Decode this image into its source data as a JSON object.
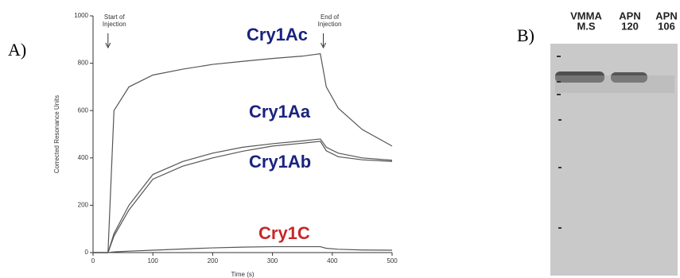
{
  "panels": {
    "a_label": "A)",
    "b_label": "B)"
  },
  "chart_data": {
    "type": "line",
    "xlabel": "Time (s)",
    "ylabel": "Corrected Resonance Units",
    "x": [
      0,
      25,
      35,
      60,
      100,
      150,
      200,
      250,
      300,
      350,
      380,
      390,
      410,
      450,
      500
    ],
    "series": [
      {
        "name": "Cry1Ac",
        "color": "#555555",
        "label_color": "#1a237e",
        "values": [
          0,
          0,
          600,
          700,
          750,
          775,
          795,
          808,
          820,
          830,
          840,
          700,
          610,
          520,
          450
        ]
      },
      {
        "name": "Cry1Aa",
        "color": "#555555",
        "label_color": "#1a237e",
        "values": [
          0,
          0,
          80,
          200,
          330,
          385,
          420,
          445,
          460,
          472,
          480,
          445,
          420,
          400,
          390
        ]
      },
      {
        "name": "Cry1Ab",
        "color": "#555555",
        "label_color": "#1a237e",
        "values": [
          0,
          0,
          70,
          180,
          310,
          365,
          400,
          428,
          450,
          462,
          470,
          430,
          405,
          392,
          385
        ]
      },
      {
        "name": "Cry1C",
        "color": "#555555",
        "label_color": "#c62828",
        "values": [
          0,
          0,
          3,
          6,
          10,
          15,
          20,
          23,
          25,
          25,
          25,
          18,
          14,
          11,
          10
        ]
      }
    ],
    "annotations": [
      {
        "lines": [
          "Start of",
          "Injection"
        ],
        "x": 25
      },
      {
        "lines": [
          "End of",
          "Injection"
        ],
        "x": 385
      }
    ],
    "xlim": [
      0,
      500
    ],
    "xticks": [
      0,
      100,
      200,
      300,
      400,
      500
    ],
    "ylim": [
      0,
      1000
    ],
    "yticks": [
      0,
      200,
      400,
      600,
      800,
      1000
    ]
  },
  "gel": {
    "lanes": [
      [
        "VMMA",
        "M.S"
      ],
      [
        "APN",
        "120"
      ],
      [
        "APN",
        "106"
      ]
    ]
  }
}
